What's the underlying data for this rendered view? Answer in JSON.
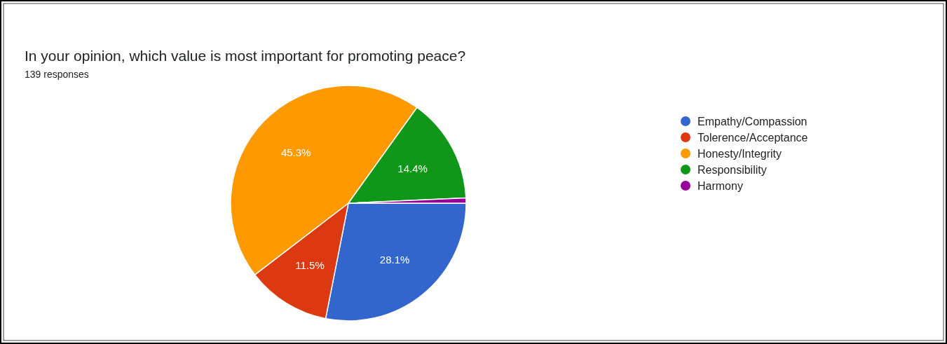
{
  "chart_data": {
    "type": "pie",
    "title": "In your opinion, which value is most important for promoting peace?",
    "subtitle": "139 responses",
    "categories": [
      "Empathy/Compassion",
      "Tolerence/Acceptance",
      "Honesty/Integrity",
      "Responsibility",
      "Harmony"
    ],
    "values": [
      28.1,
      11.5,
      45.3,
      14.4,
      0.7
    ],
    "colors": [
      "#3366cc",
      "#dc3912",
      "#ff9900",
      "#109618",
      "#990099"
    ],
    "value_labels": [
      "28.1%",
      "11.5%",
      "45.3%",
      "14.4%",
      null
    ],
    "legend": "right"
  }
}
